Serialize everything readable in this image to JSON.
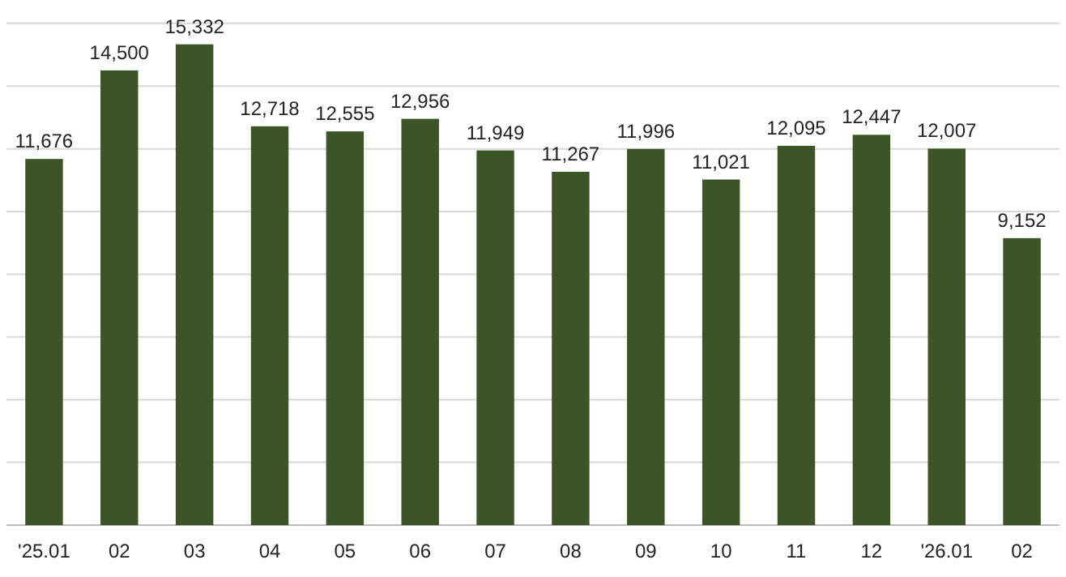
{
  "chart_data": {
    "type": "bar",
    "categories": [
      "'25.01",
      "02",
      "03",
      "04",
      "05",
      "06",
      "07",
      "08",
      "09",
      "10",
      "11",
      "12",
      "'26.01",
      "02"
    ],
    "values": [
      11676,
      14500,
      15332,
      12718,
      12555,
      12956,
      11949,
      11267,
      11996,
      11021,
      12095,
      12447,
      12007,
      9152
    ],
    "value_labels": [
      "11,676",
      "14,500",
      "15,332",
      "12,718",
      "12,555",
      "12,956",
      "11,949",
      "11,267",
      "11,996",
      "11,021",
      "12,095",
      "12,447",
      "12,007",
      "9,152"
    ],
    "color": "#3b5526",
    "grid": "y",
    "tick_labels": "x"
  }
}
